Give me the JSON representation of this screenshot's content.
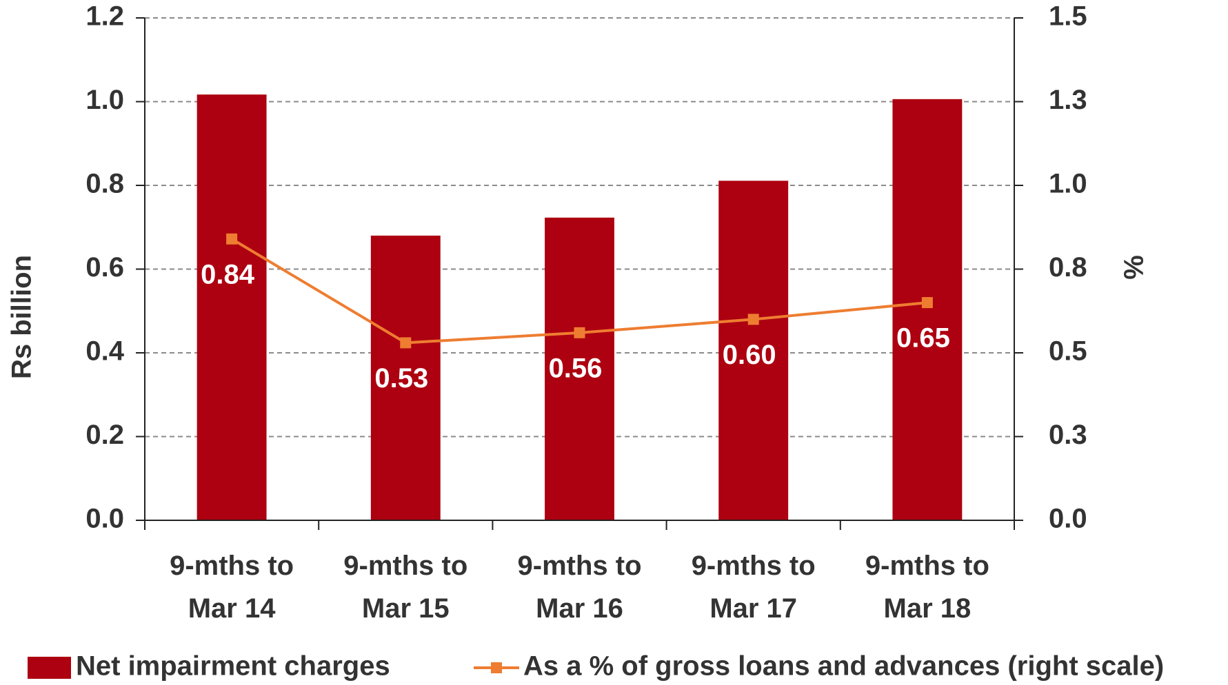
{
  "chart_data": {
    "type": "bar-line",
    "categories": [
      "9-mths to Mar 14",
      "9-mths to Mar 15",
      "9-mths to Mar 16",
      "9-mths to Mar 17",
      "9-mths to Mar 18"
    ],
    "series": [
      {
        "name": "Net impairment charges",
        "type": "bar",
        "color": "#ad0010",
        "values": [
          1.017,
          0.68,
          0.723,
          0.811,
          1.006
        ]
      },
      {
        "name": "As a % of gross loans and advances (right scale)",
        "type": "line",
        "axis": "y2",
        "color": "#ee7d31",
        "values": [
          0.84,
          0.53,
          0.56,
          0.6,
          0.65
        ],
        "value_labels": [
          "0.84",
          "0.53",
          "0.56",
          "0.60",
          "0.65"
        ]
      }
    ],
    "ylabel": "Rs billion",
    "y2label": "%",
    "ylim": [
      0,
      1.2
    ],
    "yticks": [
      {
        "value": 0,
        "label": "0.0"
      },
      0.2,
      0.4,
      0.6,
      0.8,
      {
        "value": 1,
        "label": "1.0"
      },
      1.2
    ],
    "y2lim": [
      0,
      1.5
    ],
    "y2ticks": [
      {
        "value": 0,
        "label": "0.0"
      },
      {
        "value": 0.25,
        "label": "0.3"
      },
      0.5,
      {
        "value": 0.75,
        "label": "0.8"
      },
      {
        "value": 1,
        "label": "1.0"
      },
      {
        "value": 1.25,
        "label": "1.3"
      },
      1.5
    ],
    "grid": true,
    "legend": "bottom"
  }
}
